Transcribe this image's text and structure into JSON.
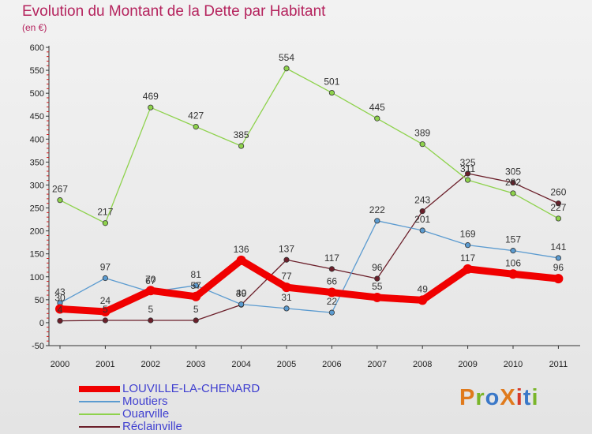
{
  "title": "Evolution du Montant de la Dette par Habitant",
  "subtitle": "(en €)",
  "logo": {
    "text": "ProXiti",
    "colors": [
      "#e07a1c",
      "#7ab52a",
      "#3a78c8",
      "#e07a1c",
      "#d63a2a",
      "#3a78c8",
      "#7ab52a"
    ]
  },
  "chart_data": {
    "type": "line",
    "title": "Evolution du Montant de la Dette par Habitant",
    "subtitle": "(en €)",
    "categories": [
      "2000",
      "2001",
      "2002",
      "2003",
      "2004",
      "2005",
      "2006",
      "2007",
      "2008",
      "2009",
      "2010",
      "2011"
    ],
    "ylim": [
      -50,
      600
    ],
    "yticks": [
      -50,
      0,
      50,
      100,
      150,
      200,
      250,
      300,
      350,
      400,
      450,
      500,
      550,
      600
    ],
    "grid": false,
    "legend_position": "bottom-left",
    "series": [
      {
        "name": "Réclainville",
        "color": "#6b1f2a",
        "values": [
          4,
          5,
          5,
          5,
          39,
          137,
          117,
          96,
          243,
          325,
          305,
          260
        ]
      },
      {
        "name": "Ouarville",
        "color": "#8ed24c",
        "values": [
          267,
          217,
          469,
          427,
          385,
          554,
          501,
          445,
          389,
          311,
          282,
          227
        ]
      },
      {
        "name": "Moutiers",
        "color": "#5b9bd0",
        "values": [
          43,
          97,
          67,
          81,
          40,
          31,
          22,
          222,
          201,
          169,
          157,
          141
        ]
      },
      {
        "name": "LOUVILLE-LA-CHENARD",
        "color": "#f00000",
        "values": [
          30,
          24,
          70,
          57,
          136,
          77,
          66,
          55,
          49,
          117,
          106,
          96
        ]
      }
    ]
  }
}
